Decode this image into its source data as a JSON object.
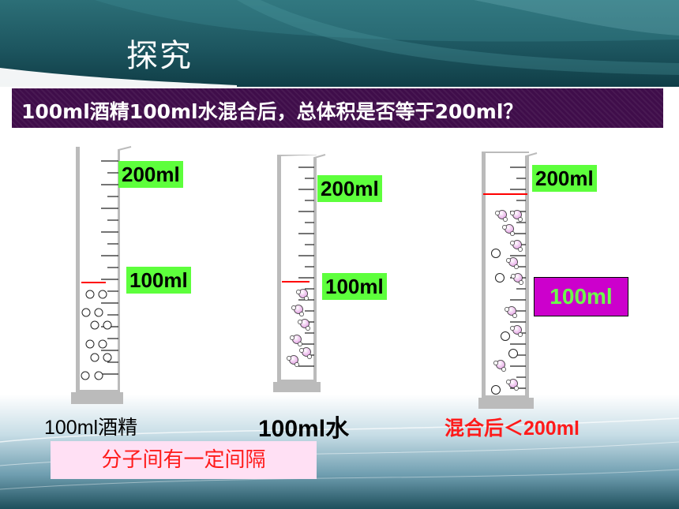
{
  "slide": {
    "title": "探究",
    "question": "100ml酒精100ml水混合后，总体积是否等于200ml？",
    "cylinder1": {
      "top_mark": "200ml",
      "mid_mark": "100ml",
      "caption": "100ml酒精"
    },
    "cylinder2": {
      "top_mark": "200ml",
      "mid_mark": "100ml",
      "caption": "100ml水"
    },
    "cylinder3": {
      "top_mark": "200ml",
      "mid_mark": "100ml",
      "caption": "混合后＜200ml"
    },
    "conclusion": "分子间有一定间隔",
    "colors": {
      "header": "#1d5660",
      "question_bar": "#3f0d4a",
      "label_green": "#5dff3c",
      "label_purple": "#cc00cc",
      "red": "#ff1a1a"
    }
  }
}
